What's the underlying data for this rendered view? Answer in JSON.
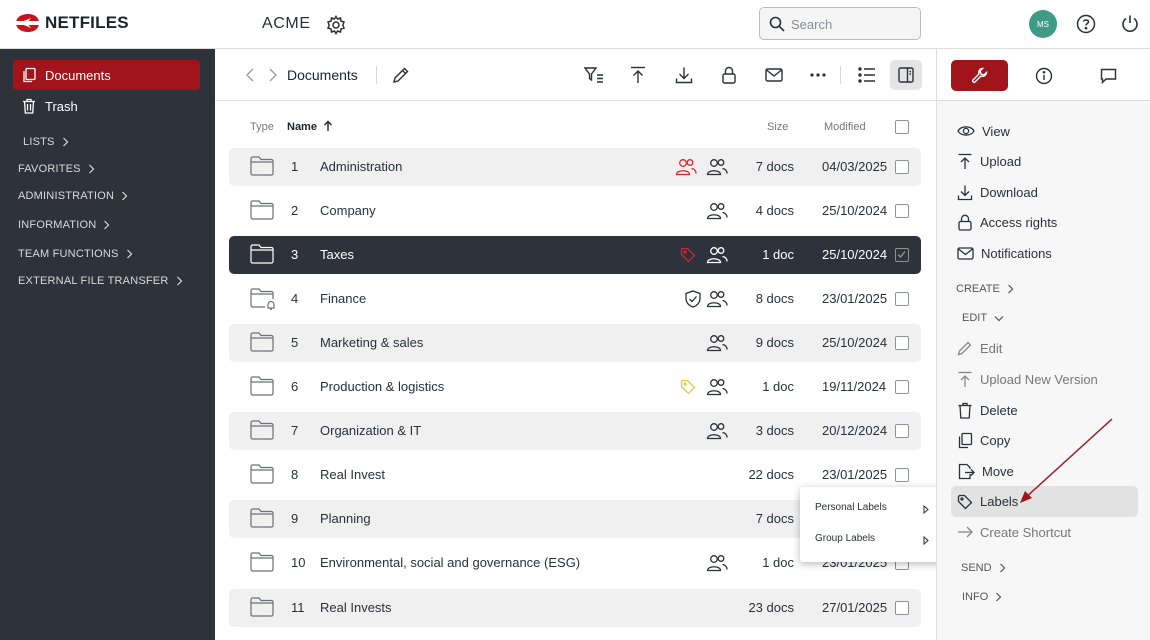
{
  "header": {
    "logo_text": "NETFILES",
    "company": "ACME",
    "search_placeholder": "Search",
    "avatar_initials": "MS"
  },
  "sidebar": {
    "items": [
      {
        "label": "Documents",
        "active": true
      },
      {
        "label": "Trash",
        "active": false
      }
    ],
    "sections": [
      "LISTS",
      "FAVORITES",
      "ADMINISTRATION",
      "INFORMATION",
      "TEAM FUNCTIONS",
      "EXTERNAL FILE TRANSFER"
    ]
  },
  "toolbar": {
    "breadcrumb": "Documents"
  },
  "table": {
    "columns": {
      "type": "Type",
      "name": "Name",
      "size": "Size",
      "modified": "Modified"
    },
    "rows": [
      {
        "num": "1",
        "name": "Administration",
        "size": "7 docs",
        "modified": "04/03/2025"
      },
      {
        "num": "2",
        "name": "Company",
        "size": "4 docs",
        "modified": "25/10/2024"
      },
      {
        "num": "3",
        "name": "Taxes",
        "size": "1 doc",
        "modified": "25/10/2024"
      },
      {
        "num": "4",
        "name": "Finance",
        "size": "8 docs",
        "modified": "23/01/2025"
      },
      {
        "num": "5",
        "name": "Marketing & sales",
        "size": "9 docs",
        "modified": "25/10/2024"
      },
      {
        "num": "6",
        "name": "Production & logistics",
        "size": "1 doc",
        "modified": "19/11/2024"
      },
      {
        "num": "7",
        "name": "Organization & IT",
        "size": "3 docs",
        "modified": "20/12/2024"
      },
      {
        "num": "8",
        "name": "Real Invest",
        "size": "22 docs",
        "modified": "23/01/2025"
      },
      {
        "num": "9",
        "name": "Planning",
        "size": "7 docs",
        "modified": ""
      },
      {
        "num": "10",
        "name": "Environmental, social and governance (ESG)",
        "size": "1 doc",
        "modified": "23/01/2025"
      },
      {
        "num": "11",
        "name": "Real Invests",
        "size": "23 docs",
        "modified": "27/01/2025"
      }
    ]
  },
  "popup": {
    "items": [
      "Personal Labels",
      "Group Labels"
    ]
  },
  "right_panel": {
    "actions": [
      "View",
      "Upload",
      "Download",
      "Access rights",
      "Notifications"
    ],
    "create_label": "CREATE",
    "edit_label": "EDIT",
    "edit_actions": [
      "Edit",
      "Upload New Version",
      "Delete",
      "Copy",
      "Move",
      "Labels",
      "Create Shortcut"
    ],
    "send_label": "SEND",
    "info_label": "INFO"
  },
  "colors": {
    "brand_red": "#a1141c",
    "sidebar_bg": "#2d323b",
    "avatar": "#3f9b86",
    "label_red": "#d9262e",
    "label_yellow": "#e8c53a"
  }
}
